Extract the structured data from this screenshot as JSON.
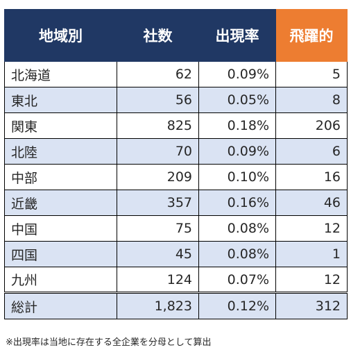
{
  "headers": [
    "地域別",
    "社数",
    "出現率",
    "飛躍的"
  ],
  "rows": [
    {
      "region": "北海道",
      "companies": "62",
      "rate": "0.09%",
      "leap": "5"
    },
    {
      "region": "東北",
      "companies": "56",
      "rate": "0.05%",
      "leap": "8"
    },
    {
      "region": "関東",
      "companies": "825",
      "rate": "0.18%",
      "leap": "206"
    },
    {
      "region": "北陸",
      "companies": "70",
      "rate": "0.09%",
      "leap": "6"
    },
    {
      "region": "中部",
      "companies": "209",
      "rate": "0.10%",
      "leap": "16"
    },
    {
      "region": "近畿",
      "companies": "357",
      "rate": "0.16%",
      "leap": "46"
    },
    {
      "region": "中国",
      "companies": "75",
      "rate": "0.08%",
      "leap": "12"
    },
    {
      "region": "四国",
      "companies": "45",
      "rate": "0.08%",
      "leap": "1"
    },
    {
      "region": "九州",
      "companies": "124",
      "rate": "0.07%",
      "leap": "12"
    }
  ],
  "total": {
    "region": "総計",
    "companies": "1,823",
    "rate": "0.12%",
    "leap": "312"
  },
  "note": "※出現率は当地に存在する全企業を分母として算出",
  "colors": {
    "header": "#203864",
    "accent_header": "#ed7d31",
    "stripe": "#dae3f3"
  }
}
